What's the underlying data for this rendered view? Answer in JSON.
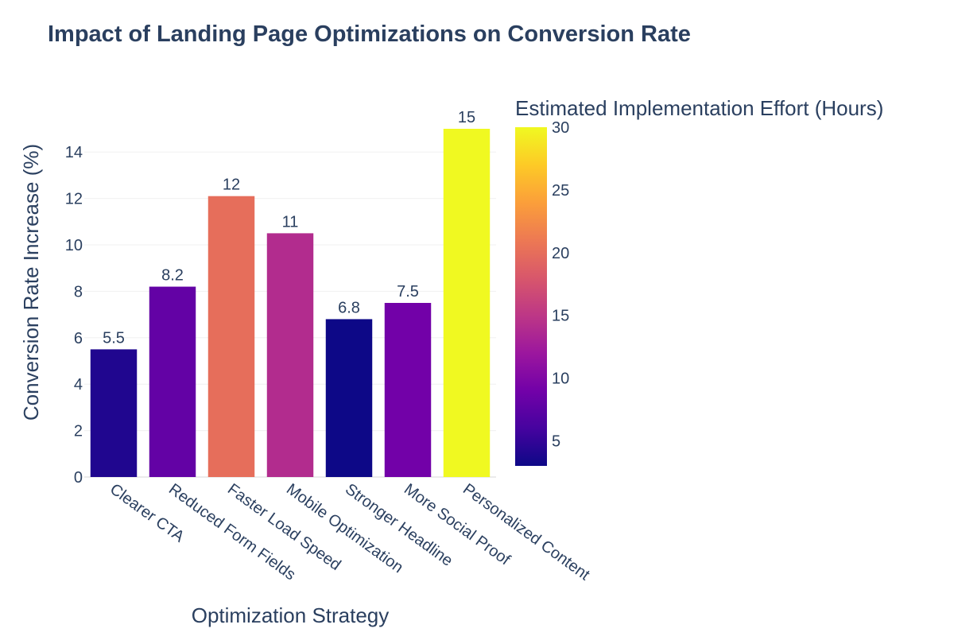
{
  "chart_data": {
    "type": "bar",
    "title": "Impact of Landing Page Optimizations on Conversion Rate",
    "xlabel": "Optimization Strategy",
    "ylabel": "Conversion Rate Increase (%)",
    "categories": [
      "Clearer CTA",
      "Reduced Form Fields",
      "Faster Load Speed",
      "Mobile Optimization",
      "Stronger Headline",
      "More Social Proof",
      "Personalized Content"
    ],
    "values": [
      5.5,
      8.2,
      12.1,
      10.5,
      6.8,
      7.5,
      15.0
    ],
    "value_labels": [
      "5.5",
      "8.2",
      "12",
      "11",
      "6.8",
      "7.5",
      "15"
    ],
    "color_values": [
      4,
      8,
      20,
      14,
      3,
      9,
      30
    ],
    "ylim": [
      0,
      15.5
    ],
    "yticks": [
      0,
      2,
      4,
      6,
      8,
      10,
      12,
      14
    ],
    "grid": true,
    "colorbar": {
      "title": "Estimated Implementation Effort (Hours)",
      "range": [
        3,
        30
      ],
      "ticks": [
        5,
        10,
        15,
        20,
        25,
        30
      ],
      "colorscale": [
        "#0d0887",
        "#46039f",
        "#7201a8",
        "#9c179e",
        "#bd3786",
        "#d8576b",
        "#ed7953",
        "#fb9f3a",
        "#fdca26",
        "#f0f921"
      ]
    }
  }
}
